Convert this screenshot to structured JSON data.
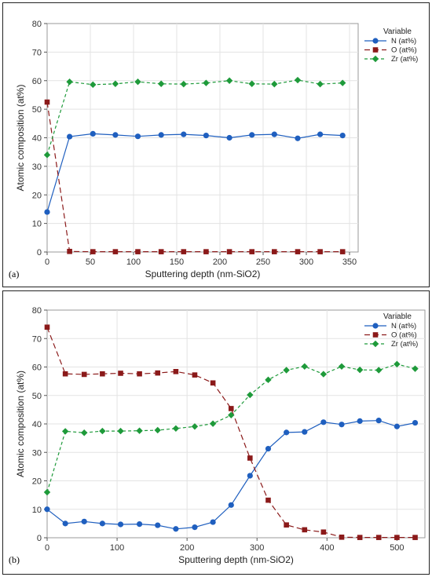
{
  "chart_data": [
    {
      "type": "line",
      "panel_label": "(a)",
      "xlabel": "Sputtering depth (nm-SiO2)",
      "ylabel": "Atomic composition (at%)",
      "xlim": [
        0,
        360
      ],
      "ylim": [
        0,
        80
      ],
      "x_ticks": [
        0,
        50,
        100,
        150,
        200,
        250,
        300,
        350
      ],
      "y_ticks": [
        0,
        10,
        20,
        30,
        40,
        50,
        60,
        70,
        80
      ],
      "grid": true,
      "legend_title": "Variable",
      "legend_position": "right",
      "x": [
        0,
        26,
        53,
        79,
        105,
        132,
        158,
        184,
        211,
        237,
        263,
        290,
        316,
        342
      ],
      "series": [
        {
          "name": "N (at%)",
          "color": "#1f5fbf",
          "marker": "circle",
          "dash": "solid",
          "values": [
            14,
            40.4,
            41.4,
            41,
            40.5,
            41,
            41.2,
            40.8,
            40,
            41,
            41.2,
            39.8,
            41.2,
            40.8
          ]
        },
        {
          "name": "O (at%)",
          "color": "#8b1a1a",
          "marker": "square",
          "dash": "long",
          "values": [
            52.5,
            0.2,
            0.1,
            0.1,
            0.1,
            0.1,
            0.1,
            0.1,
            0.1,
            0.1,
            0.1,
            0.1,
            0.1,
            0.1
          ]
        },
        {
          "name": "Zr (at%)",
          "color": "#1e9a3a",
          "marker": "diamond",
          "dash": "short",
          "values": [
            34,
            59.6,
            58.6,
            58.9,
            59.6,
            58.9,
            58.8,
            59.2,
            60,
            58.9,
            58.8,
            60.2,
            58.8,
            59.2
          ]
        }
      ]
    },
    {
      "type": "line",
      "panel_label": "(b)",
      "xlabel": "Sputtering depth (nm-SiO2)",
      "ylabel": "Atomic composition (at%)",
      "xlim": [
        0,
        540
      ],
      "ylim": [
        0,
        80
      ],
      "x_ticks": [
        0,
        100,
        200,
        300,
        400,
        500
      ],
      "y_ticks": [
        0,
        10,
        20,
        30,
        40,
        50,
        60,
        70,
        80
      ],
      "grid": true,
      "legend_title": "Variable",
      "legend_position": "right",
      "x": [
        0,
        26,
        53,
        79,
        105,
        132,
        158,
        184,
        211,
        237,
        263,
        290,
        316,
        342,
        368,
        395,
        421,
        447,
        474,
        500,
        526
      ],
      "series": [
        {
          "name": "N (at%)",
          "color": "#1f5fbf",
          "marker": "circle",
          "dash": "solid",
          "values": [
            10,
            5,
            5.7,
            5,
            4.7,
            4.8,
            4.4,
            3.1,
            3.7,
            5.5,
            11.5,
            21.8,
            31.3,
            37,
            37.2,
            40.6,
            39.8,
            41,
            41.2,
            39.1,
            40.4
          ]
        },
        {
          "name": "O (at%)",
          "color": "#8b1a1a",
          "marker": "square",
          "dash": "long",
          "values": [
            74,
            57.6,
            57.4,
            57.6,
            57.8,
            57.6,
            57.9,
            58.4,
            57.2,
            54.4,
            45.4,
            28,
            13.2,
            4.5,
            2.8,
            2,
            0.2,
            0.1,
            0.1,
            0.1,
            0.1
          ]
        },
        {
          "name": "Zr (at%)",
          "color": "#1e9a3a",
          "marker": "diamond",
          "dash": "short",
          "values": [
            16,
            37.4,
            36.9,
            37.5,
            37.5,
            37.6,
            37.8,
            38.4,
            39.1,
            40.1,
            43.1,
            50.2,
            55.5,
            58.9,
            60.2,
            57.5,
            60.2,
            59,
            58.9,
            61,
            59.4
          ]
        }
      ]
    }
  ]
}
